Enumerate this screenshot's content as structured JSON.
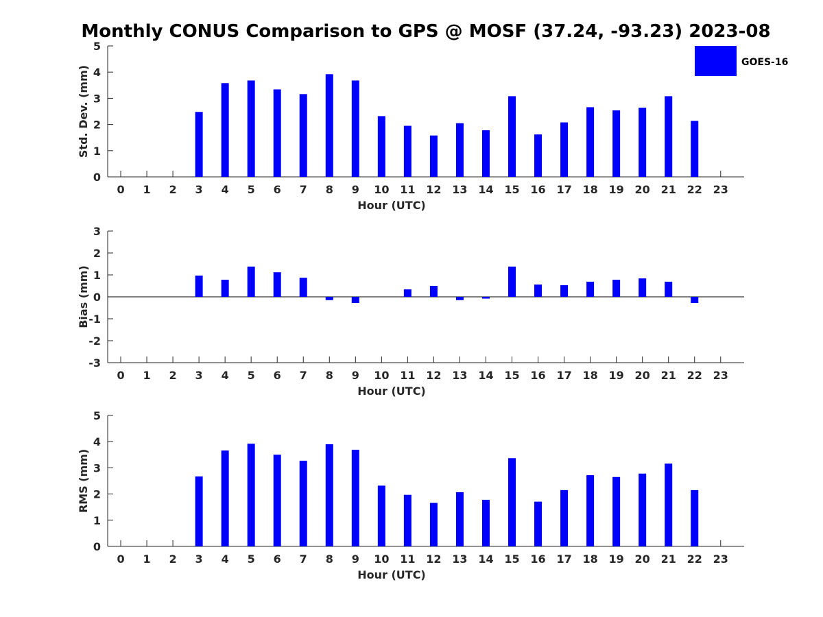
{
  "chart_data": {
    "title": "Monthly CONUS Comparison to GPS @ MOSF (37.24, -93.23) 2023-08",
    "legend": {
      "entries": [
        "GOES-16"
      ],
      "placement": "top-right",
      "color": "#0000ff"
    },
    "bar_color": "#0000ff",
    "panels": [
      {
        "type": "bar",
        "ylabel": "Std. Dev. (mm)",
        "xlabel": "Hour (UTC)",
        "ylim": [
          0,
          5
        ],
        "yticks": [
          0,
          1,
          2,
          3,
          4,
          5
        ],
        "x": [
          0,
          1,
          2,
          3,
          4,
          5,
          6,
          7,
          8,
          9,
          10,
          11,
          12,
          13,
          14,
          15,
          16,
          17,
          18,
          19,
          20,
          21,
          22,
          23
        ],
        "series": [
          {
            "name": "GOES-16",
            "values": [
              null,
              null,
              null,
              2.48,
              3.58,
              3.68,
              3.34,
              3.16,
              3.92,
              3.68,
              2.32,
              1.95,
              1.58,
              2.05,
              1.78,
              3.08,
              1.62,
              2.08,
              2.66,
              2.54,
              2.64,
              3.08,
              2.14,
              null
            ]
          }
        ]
      },
      {
        "type": "bar",
        "ylabel": "Bias (mm)",
        "xlabel": "Hour (UTC)",
        "ylim": [
          -3,
          3
        ],
        "yticks": [
          -3,
          -2,
          -1,
          0,
          1,
          2,
          3
        ],
        "zero_line": true,
        "x": [
          0,
          1,
          2,
          3,
          4,
          5,
          6,
          7,
          8,
          9,
          10,
          11,
          12,
          13,
          14,
          15,
          16,
          17,
          18,
          19,
          20,
          21,
          22,
          23
        ],
        "series": [
          {
            "name": "GOES-16",
            "values": [
              null,
              null,
              null,
              0.97,
              0.78,
              1.38,
              1.12,
              0.87,
              -0.15,
              -0.28,
              0.0,
              0.34,
              0.5,
              -0.15,
              -0.08,
              1.38,
              0.56,
              0.53,
              0.69,
              0.78,
              0.84,
              0.69,
              -0.28,
              null
            ]
          }
        ]
      },
      {
        "type": "bar",
        "ylabel": "RMS (mm)",
        "xlabel": "Hour (UTC)",
        "ylim": [
          0,
          5
        ],
        "yticks": [
          0,
          1,
          2,
          3,
          4,
          5
        ],
        "x": [
          0,
          1,
          2,
          3,
          4,
          5,
          6,
          7,
          8,
          9,
          10,
          11,
          12,
          13,
          14,
          15,
          16,
          17,
          18,
          19,
          20,
          21,
          22,
          23
        ],
        "series": [
          {
            "name": "GOES-16",
            "values": [
              null,
              null,
              null,
              2.67,
              3.66,
              3.92,
              3.5,
              3.27,
              3.9,
              3.69,
              2.32,
              1.97,
              1.66,
              2.07,
              1.78,
              3.37,
              1.71,
              2.15,
              2.72,
              2.65,
              2.78,
              3.16,
              2.15,
              null
            ]
          }
        ]
      }
    ]
  }
}
